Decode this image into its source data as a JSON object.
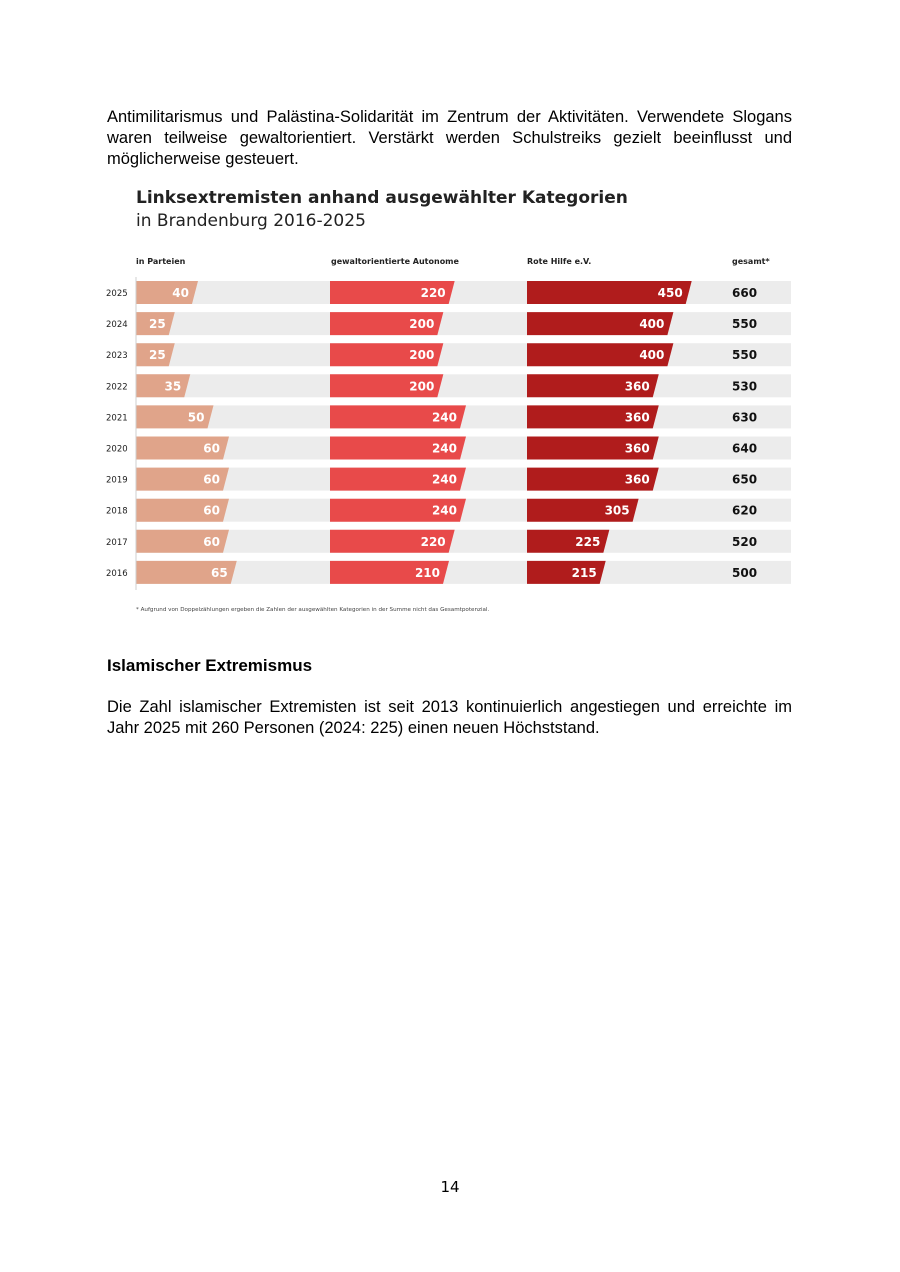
{
  "intro_text": "Antimilitarismus und Palästina-Solidarität im Zentrum der Aktivitäten. Verwendete Slogans waren teilweise gewaltorientiert. Verstärkt werden Schulstreiks gezielt beeinflusst und möglicherweise gesteuert.",
  "section_heading": "Islamischer Extremismus",
  "body_text": "Die Zahl islamischer Extremisten ist seit 2013 kontinuierlich angestiegen und erreichte im Jahr 2025 mit 260 Personen (2024: 225) einen neuen Höchststand.",
  "page_number": "14",
  "chart_data": {
    "type": "bar",
    "title": "Linksextremisten anhand ausgewählter Kategorien",
    "subtitle": "in Brandenburg 2016-2025",
    "categories": [
      "2025",
      "2024",
      "2023",
      "2022",
      "2021",
      "2020",
      "2019",
      "2018",
      "2017",
      "2016"
    ],
    "series": [
      {
        "name": "in Parteien",
        "values": [
          40,
          25,
          25,
          35,
          50,
          60,
          60,
          60,
          60,
          65
        ],
        "color": "#e0a48a",
        "max": 100
      },
      {
        "name": "gewaltorientierte Autonome",
        "values": [
          220,
          200,
          200,
          200,
          240,
          240,
          240,
          240,
          220,
          210
        ],
        "color": "#e84a4a",
        "max": 300
      },
      {
        "name": "Rote Hilfe e.V.",
        "values": [
          450,
          400,
          400,
          360,
          360,
          360,
          360,
          305,
          225,
          215
        ],
        "color": "#b01c1c",
        "max": 500
      }
    ],
    "total_label": "gesamt*",
    "totals": [
      "660",
      "550",
      "550",
      "530",
      "630",
      "640",
      "650",
      "620",
      "520",
      "500"
    ],
    "footnote": "* Aufgrund von Doppelzählungen ergeben die Zahlen der ausgewählten Kategorien in der Summe nicht das Gesamtpotenzial.",
    "background_color": "#ececec"
  }
}
